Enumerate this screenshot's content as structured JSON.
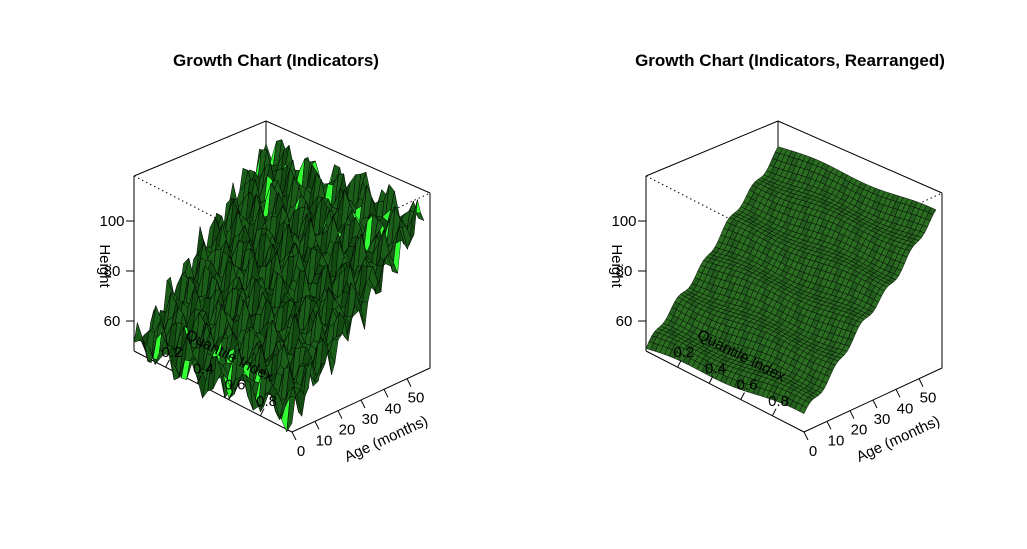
{
  "chart_data": [
    {
      "type": "surface",
      "title": "Growth Chart (Indicators)",
      "xlabel": "Quantile Index",
      "ylabel": "Age (months)",
      "zlabel": "Height",
      "xticks": [
        "0.2",
        "0.4",
        "0.6",
        "0.8"
      ],
      "yticks": [
        "0",
        "10",
        "20",
        "30",
        "40",
        "50"
      ],
      "zticks": [
        "60",
        "80",
        "100"
      ],
      "xlim": [
        0,
        1
      ],
      "ylim": [
        0,
        60
      ],
      "zlim": [
        48,
        118
      ],
      "surface_color": "#1a5e1a",
      "edge_color": "#000000",
      "highlight_color": "#33ff33",
      "surface_description": "non-monotone in quantile (crossing quantile curves)"
    },
    {
      "type": "surface",
      "title": "Growth Chart (Indicators, Rearranged)",
      "xlabel": "Quantile Index",
      "ylabel": "Age (months)",
      "zlabel": "Height",
      "xticks": [
        "0.2",
        "0.4",
        "0.6",
        "0.8"
      ],
      "yticks": [
        "0",
        "10",
        "20",
        "30",
        "40",
        "50"
      ],
      "zticks": [
        "60",
        "80",
        "100"
      ],
      "xlim": [
        0,
        1
      ],
      "ylim": [
        0,
        60
      ],
      "zlim": [
        48,
        118
      ],
      "surface_color": "#2b6e22",
      "edge_color": "#000000",
      "highlight_color": "#33ff33",
      "surface_description": "monotone in quantile (rearranged)"
    }
  ]
}
